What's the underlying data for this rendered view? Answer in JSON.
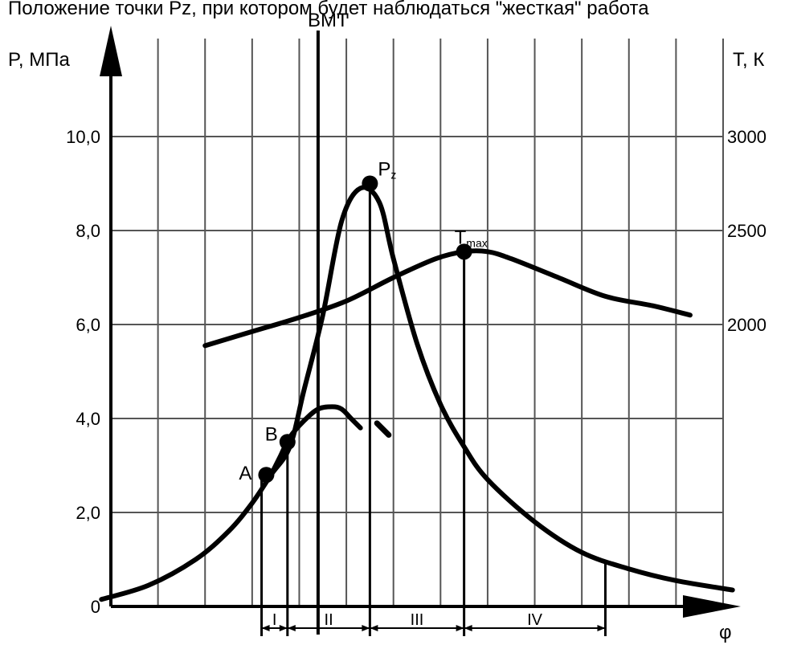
{
  "caption": "Положение точки Pz, при котором будет наблюдаться \"жесткая\" работа",
  "chart_data": {
    "type": "line",
    "top_label": "ВМТ",
    "ylabel_left": "P, МПа",
    "ylabel_right": "T, К",
    "xlabel": "φ",
    "left_ticks": [
      "0",
      "2,0",
      "4,0",
      "6,0",
      "8,0",
      "10,0"
    ],
    "right_ticks": [
      "2000",
      "2500",
      "3000"
    ],
    "ylim_left": [
      0,
      11.6
    ],
    "xlim": [
      0,
      13
    ],
    "grid": true,
    "series": [
      {
        "role": "pressure",
        "x": [
          -0.2,
          0.8,
          1.8,
          2.5,
          3.0,
          3.4,
          3.8,
          4.1,
          4.5,
          4.9,
          5.3,
          5.7,
          6.0,
          6.5,
          7.0,
          7.5,
          8.0,
          9.0,
          10.0,
          11.0,
          12.0,
          13.2
        ],
        "y": [
          0.15,
          0.45,
          1.0,
          1.6,
          2.2,
          2.8,
          3.4,
          4.6,
          6.2,
          8.2,
          8.9,
          8.6,
          7.4,
          5.6,
          4.3,
          3.4,
          2.7,
          1.8,
          1.15,
          0.8,
          0.55,
          0.35
        ]
      },
      {
        "role": "pressure-without-combustion",
        "x": [
          3.4,
          3.6,
          3.8,
          4.1,
          4.4,
          4.7,
          4.9,
          5.1,
          5.3
        ],
        "y": [
          2.8,
          3.2,
          3.6,
          3.95,
          4.2,
          4.25,
          4.2,
          4.0,
          3.8
        ]
      },
      {
        "role": "temperature",
        "x": [
          2.0,
          3.0,
          4.0,
          5.0,
          6.0,
          6.9,
          7.5,
          8.0,
          8.5,
          9.5,
          10.5,
          11.5,
          12.3
        ],
        "y": [
          5.55,
          5.85,
          6.15,
          6.5,
          7.0,
          7.4,
          7.55,
          7.55,
          7.4,
          7.0,
          6.6,
          6.4,
          6.2
        ]
      }
    ],
    "points": [
      {
        "label": "A",
        "x": 3.3,
        "y": 2.8
      },
      {
        "label": "B",
        "x": 3.75,
        "y": 3.5
      },
      {
        "label": "P",
        "sub": "z",
        "x": 5.5,
        "y": 9.0
      },
      {
        "label": "T",
        "sub": "max",
        "x": 7.5,
        "y": 7.55
      }
    ],
    "phase_labels": [
      "I",
      "II",
      "III",
      "IV"
    ],
    "phase_boundaries_x": [
      3.2,
      3.75,
      5.5,
      7.5,
      10.5
    ],
    "tdc_x": 4.4,
    "fragment": {
      "x": [
        5.65,
        5.9
      ],
      "y": [
        3.9,
        3.65
      ]
    },
    "colors": {
      "ink": "#000000",
      "grid": "#555555",
      "background": "#ffffff"
    }
  }
}
